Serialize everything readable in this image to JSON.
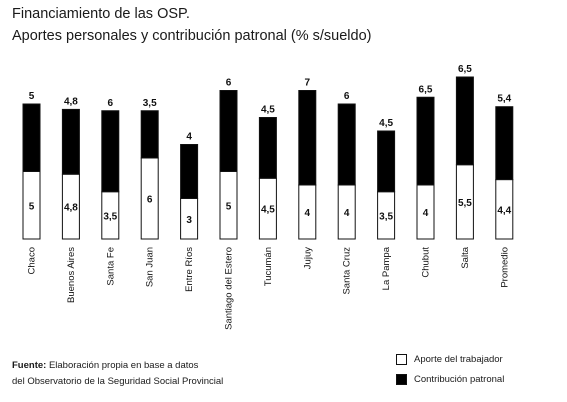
{
  "title": "Financiamiento de las OSP.",
  "subtitle": "Aportes personales y contribución patronal (% s/sueldo)",
  "source": {
    "label": "Fuente:",
    "line1": "Elaboración propia en base a datos",
    "line2": "del Observatorio de la Seguridad Social Provincial"
  },
  "legend": {
    "worker": "Aporte del trabajador",
    "employer": "Contribución patronal"
  },
  "colors": {
    "worker": "#ffffff",
    "employer": "#000000",
    "outline": "#111111"
  },
  "chart_data": {
    "type": "bar",
    "stacked": true,
    "title": "Financiamiento de las OSP.",
    "subtitle": "Aportes personales y contribución patronal (% s/sueldo)",
    "categories": [
      "Chaco",
      "Buenos Aires",
      "Santa Fe",
      "San Juan",
      "Entre Ríos",
      "Santiago del Estero",
      "Tucumán",
      "Jujuy",
      "Santa Cruz",
      "La Pampa",
      "Chubut",
      "Salta",
      "Promedio"
    ],
    "series": [
      {
        "name": "Aporte del trabajador",
        "values": [
          5,
          4.8,
          3.5,
          6,
          3,
          5,
          4.5,
          4,
          4,
          3.5,
          4,
          5.5,
          4.4
        ],
        "labels": [
          "5",
          "4,8",
          "3,5",
          "6",
          "3",
          "5",
          "4,5",
          "4",
          "4",
          "3,5",
          "4",
          "5,5",
          "4,4"
        ]
      },
      {
        "name": "Contribución patronal",
        "values": [
          5,
          4.8,
          6,
          3.5,
          4,
          6,
          4.5,
          7,
          6,
          4.5,
          6.5,
          6.5,
          5.4
        ],
        "labels": [
          "5",
          "4,8",
          "6",
          "3,5",
          "4",
          "6",
          "4,5",
          "7",
          "6",
          "4,5",
          "6,5",
          "6,5",
          "5,4"
        ]
      }
    ],
    "legend_position": "bottom-right",
    "grid": false
  }
}
